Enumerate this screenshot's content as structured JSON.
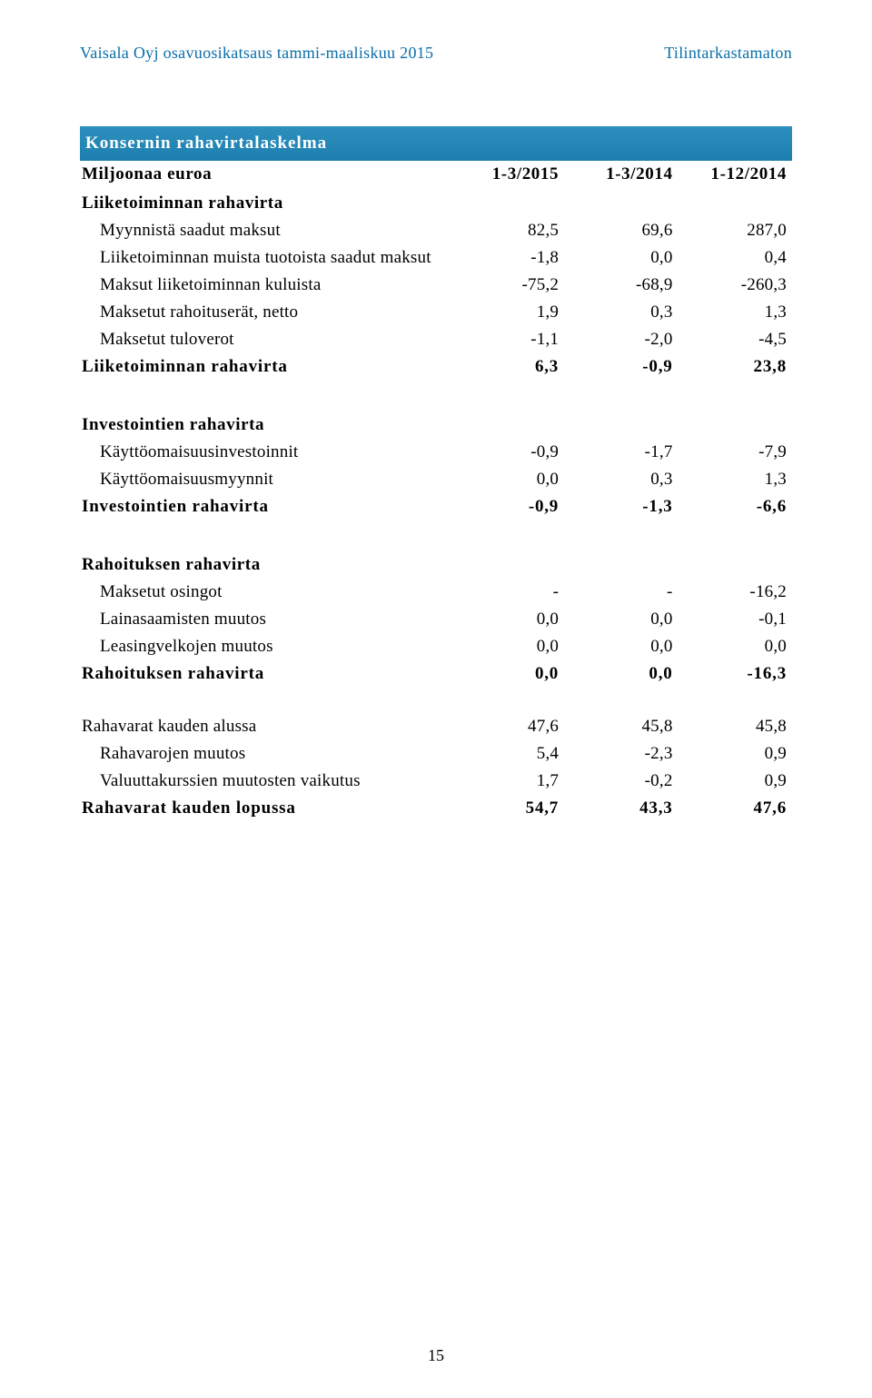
{
  "header": {
    "left": "Vaisala Oyj osavuosikatsaus tammi-maaliskuu 2015",
    "right": "Tilintarkastamaton"
  },
  "colors": {
    "header_text": "#0a6ea8",
    "title_bg": "#1e88b8",
    "title_text": "#ffffff",
    "body_text": "#000000",
    "background": "#ffffff"
  },
  "typography": {
    "body_font": "Times New Roman",
    "body_size_pt": 14,
    "header_size_pt": 13
  },
  "table": {
    "title": "Konsernin rahavirtalaskelma",
    "columns": {
      "label": "Miljoonaa euroa",
      "p1": "1-3/2015",
      "p2": "1-3/2014",
      "p3": "1-12/2014"
    },
    "sections": [
      {
        "heading": "Liiketoiminnan rahavirta",
        "rows": [
          {
            "label": "Myynnistä saadut maksut",
            "v": [
              "82,5",
              "69,6",
              "287,0"
            ],
            "indent": true
          },
          {
            "label": "Liiketoiminnan muista tuotoista saadut maksut",
            "v": [
              "-1,8",
              "0,0",
              "0,4"
            ],
            "indent": true
          },
          {
            "label": "Maksut liiketoiminnan kuluista",
            "v": [
              "-75,2",
              "-68,9",
              "-260,3"
            ],
            "indent": true
          },
          {
            "label": "Maksetut rahoituserät, netto",
            "v": [
              "1,9",
              "0,3",
              "1,3"
            ],
            "indent": true
          },
          {
            "label": "Maksetut tuloverot",
            "v": [
              "-1,1",
              "-2,0",
              "-4,5"
            ],
            "indent": true
          }
        ],
        "total": {
          "label": "Liiketoiminnan rahavirta",
          "v": [
            "6,3",
            "-0,9",
            "23,8"
          ]
        }
      },
      {
        "heading": "Investointien rahavirta",
        "rows": [
          {
            "label": "Käyttöomaisuusinvestoinnit",
            "v": [
              "-0,9",
              "-1,7",
              "-7,9"
            ],
            "indent": true
          },
          {
            "label": "Käyttöomaisuusmyynnit",
            "v": [
              "0,0",
              "0,3",
              "1,3"
            ],
            "indent": true
          }
        ],
        "total": {
          "label": "Investointien rahavirta",
          "v": [
            "-0,9",
            "-1,3",
            "-6,6"
          ]
        }
      },
      {
        "heading": "Rahoituksen rahavirta",
        "rows": [
          {
            "label": "Maksetut osingot",
            "v": [
              "-",
              "-",
              "-16,2"
            ],
            "indent": true
          },
          {
            "label": "Lainasaamisten muutos",
            "v": [
              "0,0",
              "0,0",
              "-0,1"
            ],
            "indent": true
          },
          {
            "label": "Leasingvelkojen muutos",
            "v": [
              "0,0",
              "0,0",
              "0,0"
            ],
            "indent": true
          }
        ],
        "total": {
          "label": "Rahoituksen rahavirta",
          "v": [
            "0,0",
            "0,0",
            "-16,3"
          ]
        }
      },
      {
        "heading": "",
        "rows": [
          {
            "label": "Rahavarat kauden alussa",
            "v": [
              "47,6",
              "45,8",
              "45,8"
            ],
            "indent": false
          },
          {
            "label": "Rahavarojen muutos",
            "v": [
              "5,4",
              "-2,3",
              "0,9"
            ],
            "indent": true
          },
          {
            "label": "Valuuttakurssien muutosten vaikutus",
            "v": [
              "1,7",
              "-0,2",
              "0,9"
            ],
            "indent": true
          }
        ],
        "total": {
          "label": "Rahavarat kauden lopussa",
          "v": [
            "54,7",
            "43,3",
            "47,6"
          ]
        }
      }
    ]
  },
  "page_number": "15"
}
